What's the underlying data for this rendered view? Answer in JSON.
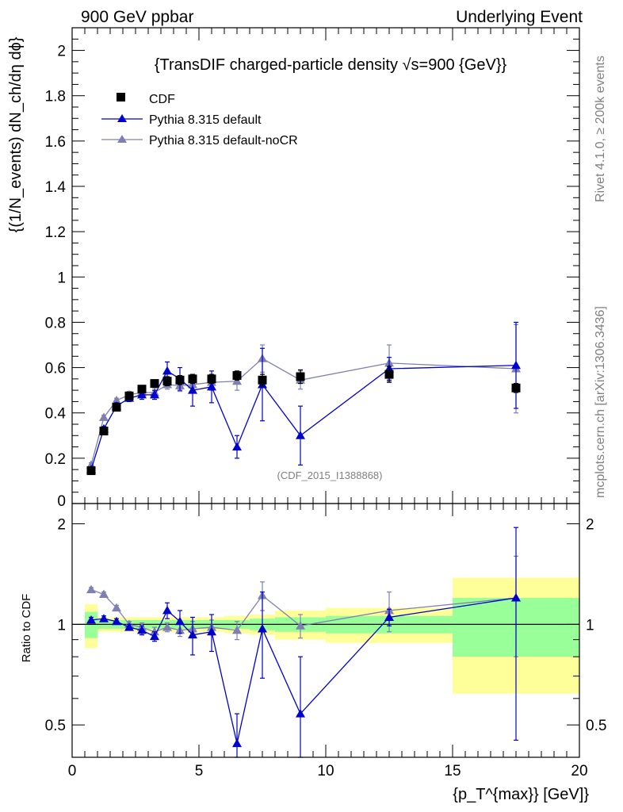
{
  "header": {
    "left": "900 GeV ppbar",
    "right": "Underlying Event"
  },
  "side_text": {
    "rivet": "Rivet 4.1.0, ≥ 200k events",
    "mcplots": "mcplots.cern.ch [arXiv:1306.3436]"
  },
  "chart_data": {
    "type": "scatter",
    "title": "{TransDIF charged-particle density √s=900 {GeV}}",
    "ylabel": "{(1/N_events) dN_ch/dη dϕ}",
    "xlabel": "{p_T^{max}} [GeV]}",
    "analysis_label": "(CDF_2015_I1388868)",
    "xlim": [
      0,
      20
    ],
    "ylim": [
      0,
      2.1
    ],
    "x_ticks": [
      "0",
      "5",
      "10",
      "15",
      "20"
    ],
    "y_ticks": [
      "0",
      "0.2",
      "0.4",
      "0.6",
      "0.8",
      "1",
      "1.2",
      "1.4",
      "1.6",
      "1.8",
      "2"
    ],
    "legend_position": "top-left",
    "legend": [
      {
        "label": "CDF",
        "marker": "square",
        "color": "#000000"
      },
      {
        "label": "Pythia 8.315 default",
        "marker": "triangle",
        "color": "#0000cc"
      },
      {
        "label": "Pythia 8.315 default-noCR",
        "marker": "triangle",
        "color": "#7f7fb2"
      }
    ],
    "series": [
      {
        "name": "CDF",
        "x": [
          0.75,
          1.25,
          1.75,
          2.25,
          2.75,
          3.25,
          3.75,
          4.25,
          4.75,
          5.5,
          6.5,
          7.5,
          9.0,
          12.5,
          17.5
        ],
        "y": [
          0.145,
          0.32,
          0.425,
          0.475,
          0.505,
          0.53,
          0.54,
          0.545,
          0.55,
          0.55,
          0.565,
          0.545,
          0.56,
          0.57,
          0.51
        ],
        "err": [
          0.015,
          0.015,
          0.015,
          0.015,
          0.015,
          0.015,
          0.02,
          0.02,
          0.02,
          0.02,
          0.02,
          0.025,
          0.03,
          0.035,
          0.02
        ]
      },
      {
        "name": "Pythia 8.315 default",
        "x": [
          0.75,
          1.25,
          1.75,
          2.25,
          2.75,
          3.25,
          3.75,
          4.25,
          4.75,
          5.5,
          6.5,
          7.5,
          9.0,
          12.5,
          17.5
        ],
        "y": [
          0.15,
          0.33,
          0.43,
          0.465,
          0.48,
          0.48,
          0.585,
          0.55,
          0.5,
          0.515,
          0.25,
          0.525,
          0.3,
          0.595,
          0.61
        ],
        "err": [
          0.01,
          0.01,
          0.015,
          0.015,
          0.02,
          0.02,
          0.04,
          0.05,
          0.07,
          0.07,
          0.05,
          0.16,
          0.13,
          0.05,
          0.19
        ]
      },
      {
        "name": "Pythia 8.315 default-noCR",
        "x": [
          0.75,
          1.25,
          1.75,
          2.25,
          2.75,
          3.25,
          3.75,
          4.25,
          4.75,
          5.5,
          6.5,
          7.5,
          9.0,
          12.5,
          17.5
        ],
        "y": [
          0.17,
          0.38,
          0.455,
          0.48,
          0.49,
          0.49,
          0.525,
          0.52,
          0.525,
          0.535,
          0.54,
          0.64,
          0.545,
          0.62,
          0.595
        ],
        "err": [
          0.01,
          0.01,
          0.01,
          0.015,
          0.02,
          0.02,
          0.02,
          0.025,
          0.03,
          0.035,
          0.04,
          0.06,
          0.04,
          0.08,
          0.195
        ]
      }
    ],
    "ratio_panel": {
      "ylabel": "Ratio to CDF",
      "ylim": [
        0.4,
        2.3
      ],
      "y_ticks": [
        "0.5",
        "1",
        "2"
      ],
      "bands": [
        {
          "x0": 0.5,
          "x1": 1.0,
          "stat": 0.09,
          "tot": 0.15
        },
        {
          "x0": 1.0,
          "x1": 1.5,
          "stat": 0.03,
          "tot": 0.05
        },
        {
          "x0": 1.5,
          "x1": 2.0,
          "stat": 0.03,
          "tot": 0.05
        },
        {
          "x0": 2.0,
          "x1": 2.5,
          "stat": 0.03,
          "tot": 0.05
        },
        {
          "x0": 2.5,
          "x1": 3.0,
          "stat": 0.03,
          "tot": 0.05
        },
        {
          "x0": 3.0,
          "x1": 3.5,
          "stat": 0.03,
          "tot": 0.05
        },
        {
          "x0": 3.5,
          "x1": 4.0,
          "stat": 0.03,
          "tot": 0.05
        },
        {
          "x0": 4.0,
          "x1": 4.5,
          "stat": 0.03,
          "tot": 0.05
        },
        {
          "x0": 4.5,
          "x1": 5.0,
          "stat": 0.03,
          "tot": 0.05
        },
        {
          "x0": 5.0,
          "x1": 6.0,
          "stat": 0.03,
          "tot": 0.05
        },
        {
          "x0": 6.0,
          "x1": 7.0,
          "stat": 0.03,
          "tot": 0.06
        },
        {
          "x0": 7.0,
          "x1": 8.0,
          "stat": 0.04,
          "tot": 0.07
        },
        {
          "x0": 8.0,
          "x1": 10.0,
          "stat": 0.05,
          "tot": 0.1
        },
        {
          "x0": 10.0,
          "x1": 15.0,
          "stat": 0.06,
          "tot": 0.12
        },
        {
          "x0": 15.0,
          "x1": 20.0,
          "stat": 0.2,
          "tot": 0.38
        }
      ],
      "series": [
        {
          "name": "Pythia 8.315 default",
          "y": [
            1.03,
            1.04,
            1.02,
            0.98,
            0.96,
            0.92,
            1.1,
            1.02,
            0.93,
            0.95,
            0.44,
            0.97,
            0.54,
            1.05,
            1.2
          ],
          "err": [
            0.02,
            0.02,
            0.02,
            0.02,
            0.03,
            0.03,
            0.06,
            0.08,
            0.12,
            0.12,
            0.1,
            0.28,
            0.26,
            0.06,
            0.75
          ]
        },
        {
          "name": "Pythia 8.315 default-noCR",
          "y": [
            1.27,
            1.23,
            1.12,
            1.0,
            0.98,
            0.95,
            0.98,
            0.96,
            0.97,
            0.98,
            0.96,
            1.22,
            0.99,
            1.1,
            1.2
          ],
          "err": [
            0.02,
            0.02,
            0.02,
            0.02,
            0.03,
            0.03,
            0.03,
            0.04,
            0.05,
            0.05,
            0.06,
            0.12,
            0.08,
            0.15,
            0.4
          ]
        }
      ]
    }
  }
}
